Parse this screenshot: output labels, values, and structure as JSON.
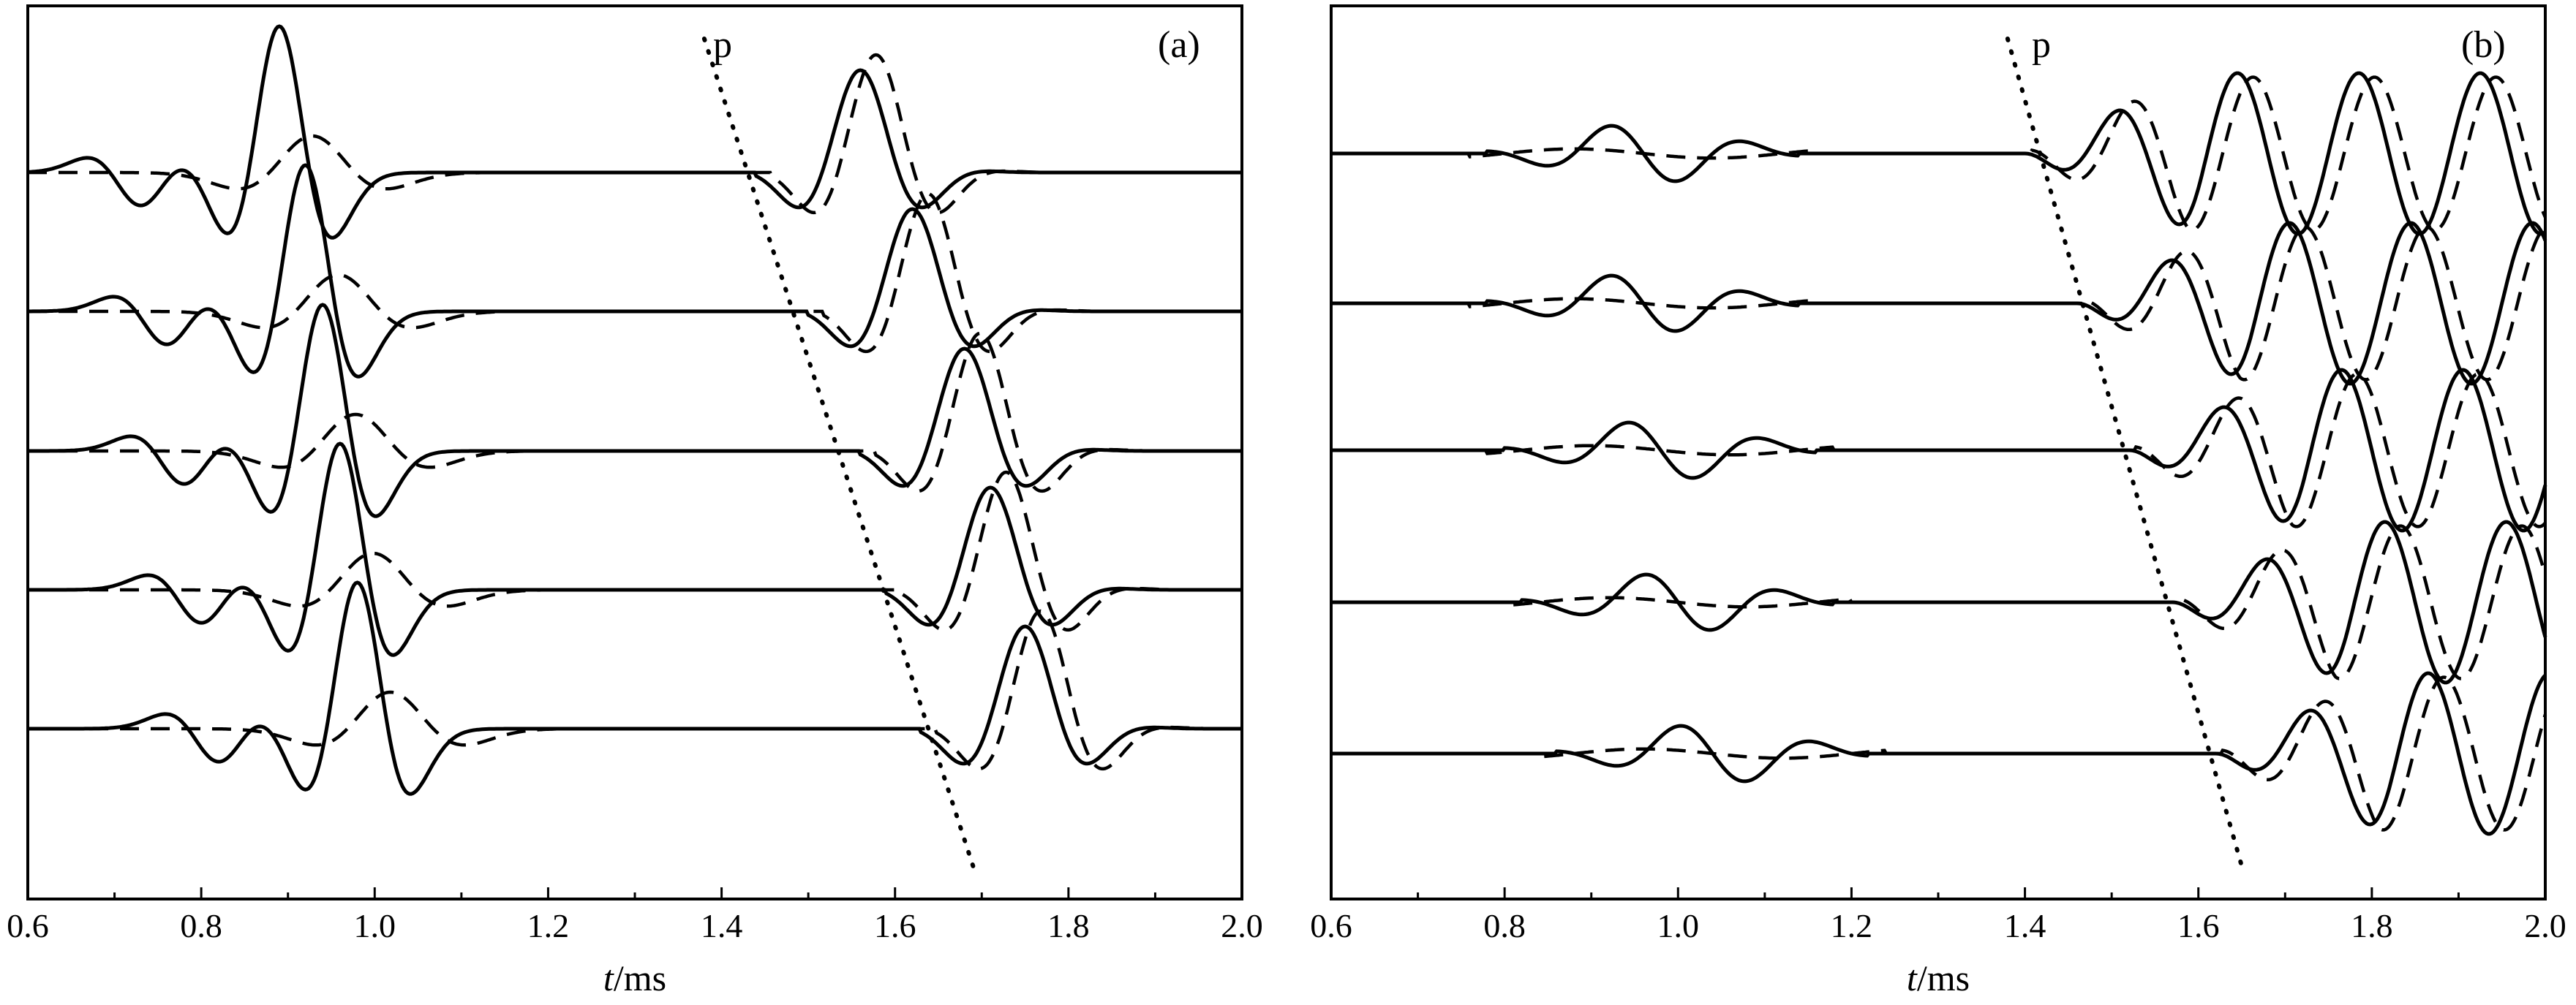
{
  "chart_data": [
    {
      "type": "line",
      "panel_label": "(a)",
      "xlabel_italic": "t",
      "xlabel_unit": "/ms",
      "xlim": [
        0.6,
        2.0
      ],
      "xticks": [
        "0.6",
        "0.8",
        "1.0",
        "1.2",
        "1.4",
        "1.6",
        "1.8",
        "2.0"
      ],
      "line_styles": [
        "solid",
        "dashed"
      ],
      "p_line": {
        "label": "p",
        "start_t": 1.38,
        "end_t": 1.69
      },
      "trace_count": 5,
      "traces": [
        {
          "index": 1,
          "direct_wave_peak_t": 0.89,
          "arrival_t": 1.44
        },
        {
          "index": 2,
          "direct_wave_peak_t": 0.92,
          "arrival_t": 1.5
        },
        {
          "index": 3,
          "direct_wave_peak_t": 0.94,
          "arrival_t": 1.56
        },
        {
          "index": 4,
          "direct_wave_peak_t": 0.96,
          "arrival_t": 1.59
        },
        {
          "index": 5,
          "direct_wave_peak_t": 0.98,
          "arrival_t": 1.63
        }
      ]
    },
    {
      "type": "line",
      "panel_label": "(b)",
      "xlabel_italic": "t",
      "xlabel_unit": "/ms",
      "xlim": [
        0.6,
        2.0
      ],
      "xticks": [
        "0.6",
        "0.8",
        "1.0",
        "1.2",
        "1.4",
        "1.6",
        "1.8",
        "2.0"
      ],
      "line_styles": [
        "solid",
        "dashed"
      ],
      "p_line": {
        "label": "p",
        "start_t": 1.38,
        "end_t": 1.65
      },
      "trace_count": 5,
      "traces": [
        {
          "index": 1,
          "direct_wave_peak_t": 0.96,
          "arrival_t": 1.4
        },
        {
          "index": 2,
          "direct_wave_peak_t": 0.96,
          "arrival_t": 1.46
        },
        {
          "index": 3,
          "direct_wave_peak_t": 0.98,
          "arrival_t": 1.52
        },
        {
          "index": 4,
          "direct_wave_peak_t": 1.0,
          "arrival_t": 1.57
        },
        {
          "index": 5,
          "direct_wave_peak_t": 1.04,
          "arrival_t": 1.62
        }
      ]
    }
  ]
}
